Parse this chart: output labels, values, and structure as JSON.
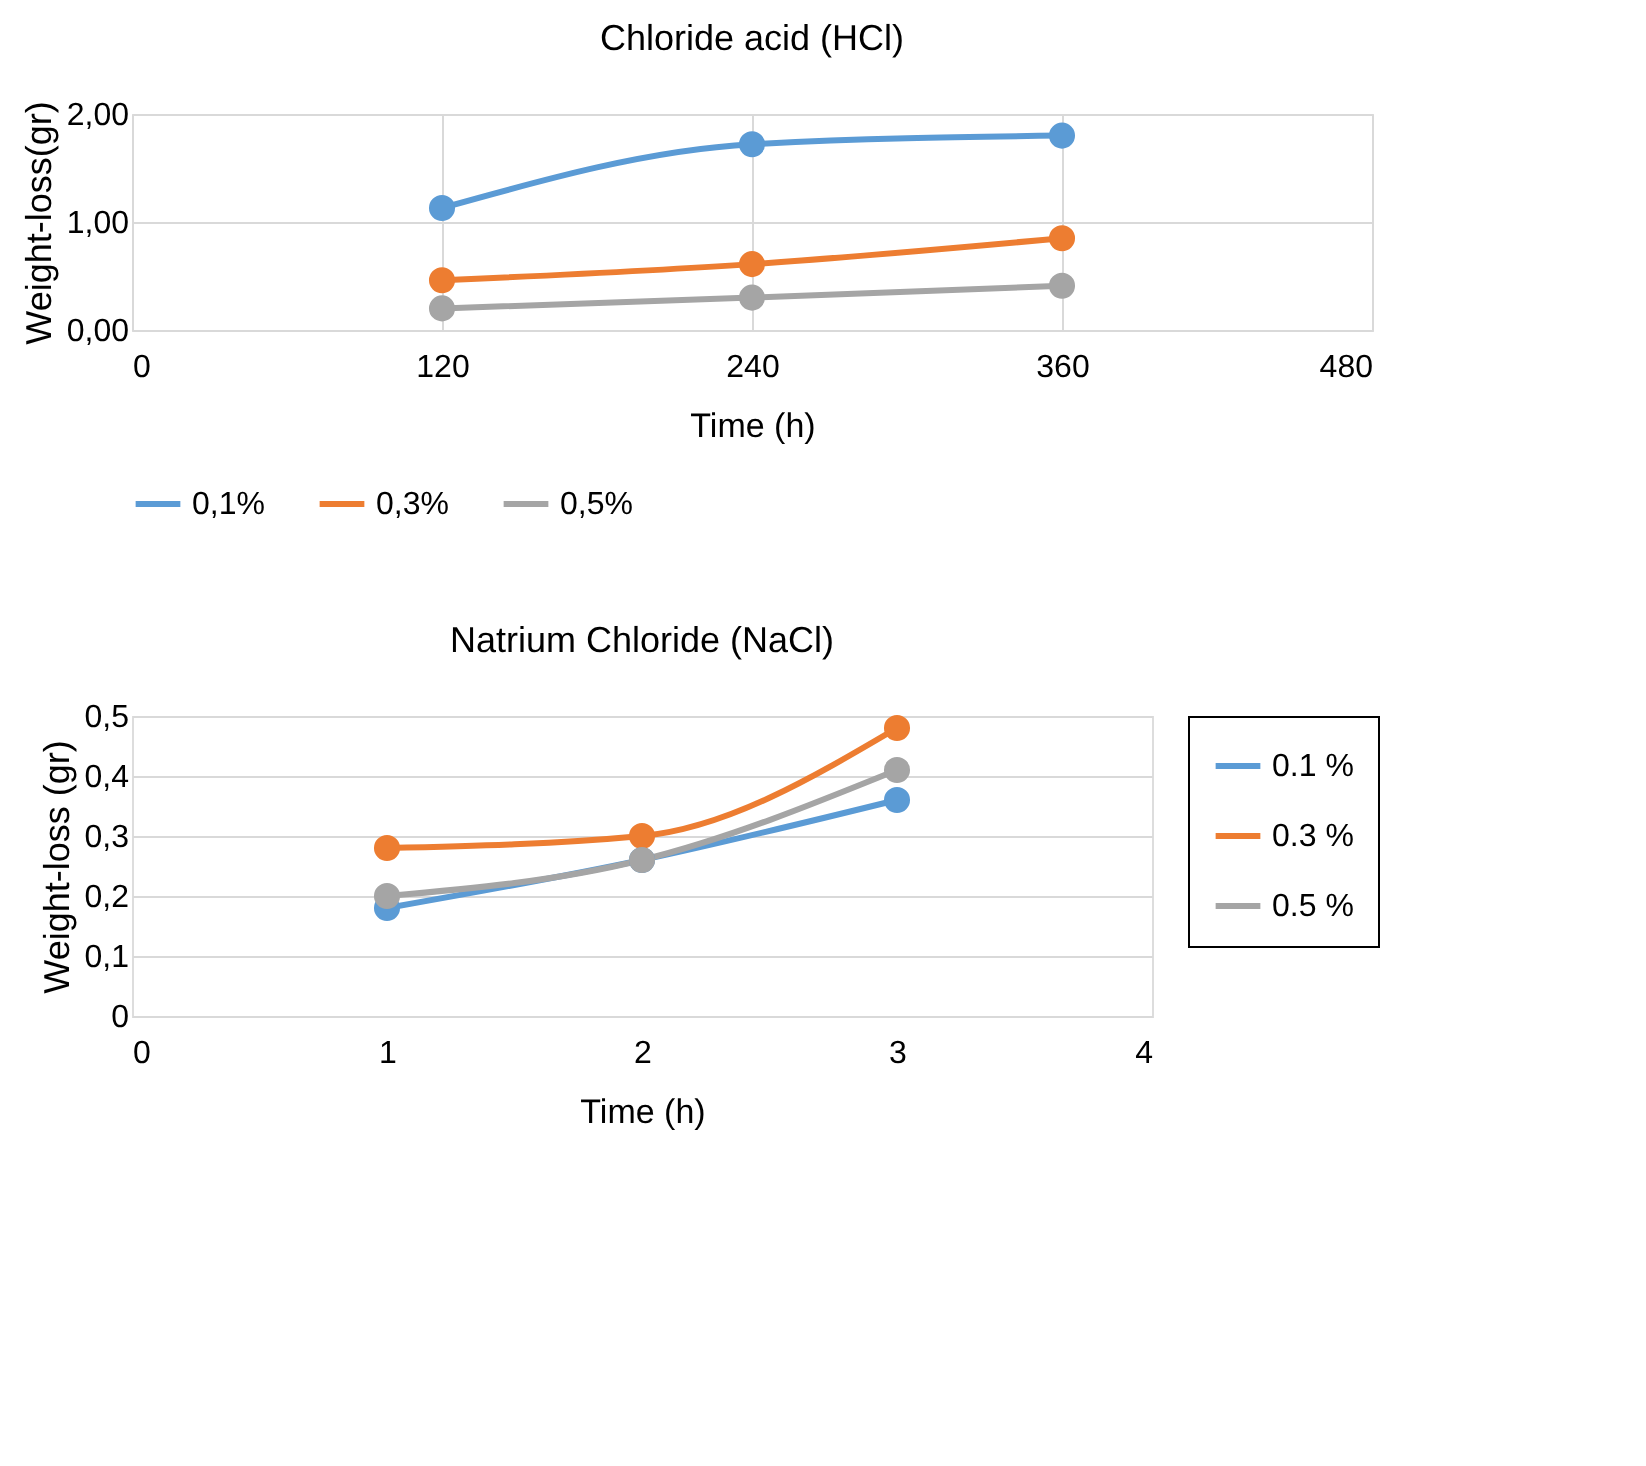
{
  "chart_data": [
    {
      "type": "line",
      "title": "Chloride acid (HCl)",
      "xlabel": "Time (h)",
      "ylabel": "Weight-loss(gr)",
      "x": [
        120,
        240,
        360
      ],
      "xlim": [
        0,
        480
      ],
      "xticks": [
        0,
        120,
        240,
        360,
        480
      ],
      "ylim": [
        0,
        2
      ],
      "yticks": [
        {
          "value": 0,
          "label": "0,00"
        },
        {
          "value": 1,
          "label": "1,00"
        },
        {
          "value": 2,
          "label": "2,00"
        }
      ],
      "grid": true,
      "legend": "bottom",
      "marker": "circle",
      "line_style": "solid",
      "series": [
        {
          "name": "0,1%",
          "color": "#5b9bd5",
          "values": [
            1.13,
            1.72,
            1.8
          ]
        },
        {
          "name": "0,3%",
          "color": "#ed7d31",
          "values": [
            0.46,
            0.61,
            0.85
          ]
        },
        {
          "name": "0,5%",
          "color": "#a5a5a5",
          "values": [
            0.2,
            0.3,
            0.41
          ]
        }
      ]
    },
    {
      "type": "line",
      "title": "Natrium Chloride (NaCl)",
      "xlabel": "Time (h)",
      "ylabel": "Weight-loss  (gr)",
      "x": [
        1,
        2,
        3
      ],
      "xlim": [
        0,
        4
      ],
      "xticks": [
        0,
        1,
        2,
        3,
        4
      ],
      "ylim": [
        0,
        0.5
      ],
      "yticks": [
        0,
        {
          "value": 0.1,
          "label": "0,1"
        },
        {
          "value": 0.2,
          "label": "0,2"
        },
        {
          "value": 0.3,
          "label": "0,3"
        },
        {
          "value": 0.4,
          "label": "0,4"
        },
        {
          "value": 0.5,
          "label": "0,5"
        }
      ],
      "grid": "y",
      "legend": "right",
      "marker": "circle",
      "line_style": "solid",
      "series": [
        {
          "name": "0.1 %",
          "color": "#5b9bd5",
          "values": [
            0.18,
            0.26,
            0.36
          ]
        },
        {
          "name": "0.3 %",
          "color": "#ed7d31",
          "values": [
            0.28,
            0.3,
            0.48
          ]
        },
        {
          "name": "0.5 %",
          "color": "#a5a5a5",
          "values": [
            0.2,
            0.26,
            0.41
          ]
        }
      ]
    }
  ]
}
